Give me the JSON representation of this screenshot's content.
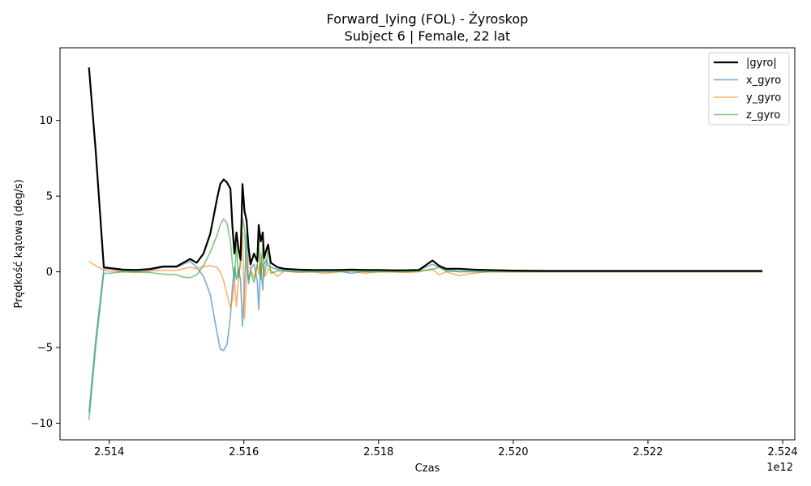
{
  "chart_data": {
    "type": "line",
    "title": "Forward_lying (FOL) - Żyroskop",
    "subtitle": "Subject 6 | Female, 22 lat",
    "xlabel": "Czas",
    "ylabel": "Prędkość kątowa (deg/s)",
    "x_offset_label": "1e12",
    "xlim": [
      2.51327,
      2.52418
    ],
    "ylim": [
      -11.1,
      14.8
    ],
    "x_ticks": [
      2.514,
      2.516,
      2.518,
      2.52,
      2.522,
      2.524
    ],
    "x_tick_labels": [
      "2.514",
      "2.516",
      "2.518",
      "2.520",
      "2.522",
      "2.524"
    ],
    "y_ticks": [
      -10,
      -5,
      0,
      5,
      10
    ],
    "y_tick_labels": [
      "−10",
      "−5",
      "0",
      "5",
      "10"
    ],
    "grid": false,
    "legend_position": "top-right",
    "series": [
      {
        "name": "|gyro|",
        "color": "#000000",
        "x": [
          2.5137,
          2.5138,
          2.51392,
          2.514,
          2.5142,
          2.5144,
          2.5146,
          2.5148,
          2.515,
          2.5151,
          2.5152,
          2.5153,
          2.5154,
          2.5155,
          2.5156,
          2.51565,
          2.5157,
          2.51575,
          2.5158,
          2.51583,
          2.51586,
          2.51589,
          2.51592,
          2.51595,
          2.51598,
          2.51601,
          2.51604,
          2.51607,
          2.5161,
          2.51615,
          2.5162,
          2.51622,
          2.51625,
          2.51628,
          2.5163,
          2.51633,
          2.51636,
          2.5164,
          2.5165,
          2.5166,
          2.5168,
          2.517,
          2.5172,
          2.5174,
          2.5176,
          2.5178,
          2.518,
          2.5182,
          2.5184,
          2.5186,
          2.5188,
          2.5189,
          2.519,
          2.5192,
          2.5194,
          2.5196,
          2.5198,
          2.52,
          2.5205,
          2.521,
          2.5215,
          2.522,
          2.5225,
          2.523,
          2.5235,
          2.5237
        ],
        "y": [
          13.5,
          8.0,
          0.3,
          0.25,
          0.15,
          0.12,
          0.18,
          0.35,
          0.35,
          0.6,
          0.85,
          0.6,
          1.2,
          2.5,
          4.8,
          5.8,
          6.1,
          5.9,
          5.5,
          3.0,
          1.2,
          2.6,
          1.5,
          0.8,
          5.8,
          4.0,
          3.4,
          1.6,
          0.5,
          1.2,
          0.7,
          3.1,
          2.0,
          2.6,
          0.9,
          1.4,
          1.8,
          0.6,
          0.3,
          0.2,
          0.15,
          0.12,
          0.12,
          0.12,
          0.15,
          0.12,
          0.12,
          0.1,
          0.1,
          0.12,
          0.75,
          0.4,
          0.2,
          0.2,
          0.15,
          0.12,
          0.1,
          0.08,
          0.06,
          0.06,
          0.06,
          0.06,
          0.06,
          0.06,
          0.06,
          0.06
        ]
      },
      {
        "name": "x_gyro",
        "color": "#1f77b4",
        "x": [
          2.5137,
          2.5138,
          2.51392,
          2.514,
          2.5142,
          2.5144,
          2.5146,
          2.5148,
          2.515,
          2.5151,
          2.5152,
          2.5153,
          2.5154,
          2.5155,
          2.5156,
          2.51565,
          2.5157,
          2.51575,
          2.5158,
          2.51583,
          2.51586,
          2.51589,
          2.51592,
          2.51595,
          2.51598,
          2.51601,
          2.51604,
          2.51607,
          2.5161,
          2.51615,
          2.5162,
          2.51622,
          2.51625,
          2.51628,
          2.5163,
          2.51633,
          2.51636,
          2.5164,
          2.5165,
          2.5166,
          2.5168,
          2.517,
          2.5172,
          2.5174,
          2.5176,
          2.5178,
          2.518,
          2.5182,
          2.5184,
          2.5186,
          2.5188,
          2.5189,
          2.519,
          2.5192,
          2.5194,
          2.5196,
          2.5198,
          2.52,
          2.5205,
          2.521,
          2.5215,
          2.522,
          2.5225,
          2.523,
          2.5235,
          2.5237
        ],
        "y": [
          -9.3,
          -4.5,
          0.2,
          0.2,
          0.05,
          0.05,
          0.1,
          0.3,
          0.3,
          0.5,
          0.7,
          0.3,
          -0.3,
          -1.5,
          -4.0,
          -5.1,
          -5.2,
          -4.8,
          -3.0,
          -1.0,
          0.3,
          -0.5,
          0.2,
          -0.5,
          -3.6,
          -1.0,
          2.5,
          -0.8,
          0.2,
          0.5,
          -0.6,
          -2.5,
          0.6,
          -1.2,
          0.5,
          0.8,
          0.4,
          0.3,
          0.15,
          0.1,
          0.05,
          0.05,
          0.05,
          0.05,
          -0.1,
          0.05,
          0.05,
          0.05,
          0.05,
          0.1,
          0.5,
          0.3,
          0.1,
          0.05,
          0.05,
          0.02,
          0.02,
          0.02,
          0.02,
          0.02,
          0.02,
          0.02,
          0.02,
          0.02,
          0.02,
          0.02
        ]
      },
      {
        "name": "y_gyro",
        "color": "#ff7f0e",
        "x": [
          2.5137,
          2.5138,
          2.51392,
          2.514,
          2.5142,
          2.5144,
          2.5146,
          2.5148,
          2.515,
          2.5151,
          2.5152,
          2.5153,
          2.5154,
          2.5155,
          2.5156,
          2.51565,
          2.5157,
          2.51575,
          2.5158,
          2.51583,
          2.51586,
          2.51589,
          2.51592,
          2.51595,
          2.51598,
          2.51601,
          2.51604,
          2.51607,
          2.5161,
          2.51615,
          2.5162,
          2.51622,
          2.51625,
          2.51628,
          2.5163,
          2.51633,
          2.51636,
          2.5164,
          2.5165,
          2.5166,
          2.5168,
          2.517,
          2.5172,
          2.5174,
          2.5176,
          2.5178,
          2.518,
          2.5182,
          2.5184,
          2.5186,
          2.5188,
          2.5189,
          2.519,
          2.5192,
          2.5194,
          2.5196,
          2.5198,
          2.52,
          2.5205,
          2.521,
          2.5215,
          2.522,
          2.5225,
          2.523,
          2.5235,
          2.5237
        ],
        "y": [
          0.7,
          0.4,
          0.1,
          0.05,
          0.0,
          -0.05,
          0.05,
          0.1,
          0.1,
          0.2,
          0.3,
          0.2,
          0.35,
          0.4,
          0.3,
          0.0,
          -0.6,
          -1.5,
          -2.4,
          -1.8,
          -0.6,
          -2.3,
          -0.5,
          0.5,
          2.6,
          -3.1,
          -0.5,
          1.2,
          0.2,
          -0.4,
          0.5,
          -0.2,
          1.2,
          0.3,
          -0.3,
          -0.2,
          0.2,
          0.1,
          -0.3,
          0.05,
          -0.05,
          0.0,
          -0.1,
          0.0,
          0.05,
          -0.1,
          0.0,
          0.0,
          -0.05,
          0.0,
          0.2,
          -0.2,
          0.0,
          -0.25,
          -0.1,
          0.0,
          0.0,
          0.0,
          0.0,
          0.0,
          0.0,
          0.0,
          0.0,
          0.0,
          0.0,
          0.0
        ]
      },
      {
        "name": "z_gyro",
        "color": "#2ca02c",
        "x": [
          2.5137,
          2.5138,
          2.51392,
          2.514,
          2.5142,
          2.5144,
          2.5146,
          2.5148,
          2.515,
          2.5151,
          2.5152,
          2.5153,
          2.5154,
          2.5155,
          2.5156,
          2.51565,
          2.5157,
          2.51575,
          2.5158,
          2.51583,
          2.51586,
          2.51589,
          2.51592,
          2.51595,
          2.51598,
          2.51601,
          2.51604,
          2.51607,
          2.5161,
          2.51615,
          2.5162,
          2.51622,
          2.51625,
          2.51628,
          2.5163,
          2.51633,
          2.51636,
          2.5164,
          2.5165,
          2.5166,
          2.5168,
          2.517,
          2.5172,
          2.5174,
          2.5176,
          2.5178,
          2.518,
          2.5182,
          2.5184,
          2.5186,
          2.5188,
          2.5189,
          2.519,
          2.5192,
          2.5194,
          2.5196,
          2.5198,
          2.52,
          2.5205,
          2.521,
          2.5215,
          2.522,
          2.5225,
          2.523,
          2.5235,
          2.5237
        ],
        "y": [
          -9.8,
          -5.0,
          -0.1,
          -0.1,
          0.0,
          0.0,
          -0.05,
          -0.15,
          -0.2,
          -0.35,
          -0.4,
          -0.2,
          0.4,
          1.3,
          2.4,
          3.1,
          3.5,
          3.2,
          2.0,
          0.5,
          -0.6,
          1.8,
          -0.4,
          0.8,
          3.6,
          2.8,
          0.2,
          -0.5,
          0.0,
          -0.7,
          0.4,
          2.2,
          -0.5,
          1.9,
          -0.3,
          0.4,
          1.6,
          -0.1,
          0.05,
          0.05,
          0.0,
          0.0,
          0.0,
          0.0,
          0.05,
          0.0,
          0.0,
          0.0,
          0.0,
          0.05,
          0.15,
          0.3,
          0.05,
          0.0,
          0.0,
          0.0,
          0.0,
          0.0,
          0.0,
          0.0,
          0.0,
          0.0,
          0.0,
          0.0,
          0.0,
          0.0
        ]
      }
    ]
  }
}
